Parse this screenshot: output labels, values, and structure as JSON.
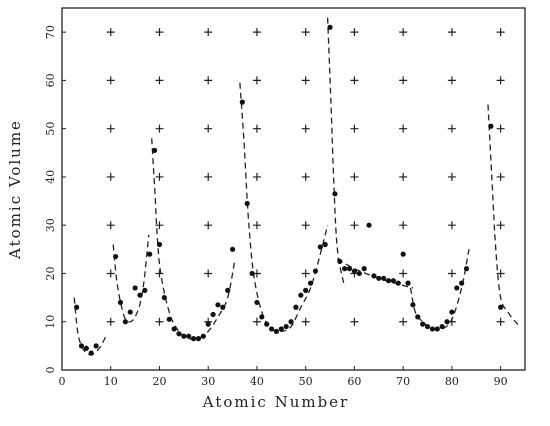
{
  "chart_data": {
    "type": "scatter",
    "title": "",
    "xlabel": "Atomic Number",
    "ylabel": "Atomic Volume",
    "xlim": [
      0,
      95
    ],
    "ylim": [
      0,
      75
    ],
    "xticks": [
      0,
      10,
      20,
      30,
      40,
      50,
      60,
      70,
      80,
      90
    ],
    "yticks": [
      0,
      10,
      20,
      30,
      40,
      50,
      60,
      70
    ],
    "grid": "plus-markers",
    "points": [
      [
        3,
        13
      ],
      [
        4,
        5
      ],
      [
        5,
        4.5
      ],
      [
        6,
        3.5
      ],
      [
        7,
        5
      ],
      [
        11,
        23.5
      ],
      [
        12,
        14
      ],
      [
        13,
        10
      ],
      [
        14,
        12
      ],
      [
        15,
        17
      ],
      [
        16,
        15.5
      ],
      [
        17,
        16.5
      ],
      [
        18,
        24
      ],
      [
        19,
        45.5
      ],
      [
        20,
        26
      ],
      [
        21,
        15
      ],
      [
        22,
        10.5
      ],
      [
        23,
        8.5
      ],
      [
        24,
        7.5
      ],
      [
        25,
        7
      ],
      [
        26,
        7
      ],
      [
        27,
        6.5
      ],
      [
        28,
        6.5
      ],
      [
        29,
        7
      ],
      [
        30,
        9.5
      ],
      [
        31,
        11.5
      ],
      [
        32,
        13.5
      ],
      [
        33,
        13
      ],
      [
        34,
        16.5
      ],
      [
        35,
        25
      ],
      [
        37,
        55.5
      ],
      [
        38,
        34.5
      ],
      [
        39,
        20
      ],
      [
        40,
        14
      ],
      [
        41,
        11
      ],
      [
        42,
        9.5
      ],
      [
        43,
        8.5
      ],
      [
        44,
        8
      ],
      [
        45,
        8.5
      ],
      [
        46,
        9
      ],
      [
        47,
        10
      ],
      [
        48,
        13
      ],
      [
        49,
        15.5
      ],
      [
        50,
        16.5
      ],
      [
        51,
        18
      ],
      [
        52,
        20.5
      ],
      [
        53,
        25.5
      ],
      [
        54,
        26
      ],
      [
        55,
        71
      ],
      [
        56,
        36.5
      ],
      [
        57,
        22.5
      ],
      [
        58,
        21
      ],
      [
        59,
        21
      ],
      [
        60,
        20.5
      ],
      [
        61,
        20
      ],
      [
        62,
        21
      ],
      [
        63,
        30
      ],
      [
        64,
        19.5
      ],
      [
        65,
        19
      ],
      [
        66,
        19
      ],
      [
        67,
        18.5
      ],
      [
        68,
        18.5
      ],
      [
        69,
        18
      ],
      [
        70,
        24
      ],
      [
        71,
        18
      ],
      [
        72,
        13.5
      ],
      [
        73,
        11
      ],
      [
        74,
        9.5
      ],
      [
        75,
        9
      ],
      [
        76,
        8.5
      ],
      [
        77,
        8.5
      ],
      [
        78,
        9
      ],
      [
        79,
        10
      ],
      [
        80,
        12
      ],
      [
        81,
        17
      ],
      [
        82,
        18
      ],
      [
        83,
        21
      ],
      [
        88,
        50.5
      ],
      [
        90,
        13
      ]
    ],
    "curves": [
      [
        [
          2.5,
          15
        ],
        [
          3.2,
          8
        ],
        [
          4,
          5
        ],
        [
          5,
          3.5
        ],
        [
          6,
          3.2
        ],
        [
          7,
          3.8
        ],
        [
          8,
          5
        ],
        [
          9,
          7
        ]
      ],
      [
        [
          10.5,
          26
        ],
        [
          11.3,
          18
        ],
        [
          12.5,
          12
        ],
        [
          13.5,
          10
        ],
        [
          15,
          11
        ],
        [
          16.5,
          16
        ],
        [
          17.8,
          28
        ]
      ],
      [
        [
          18.4,
          48
        ],
        [
          19,
          38
        ],
        [
          20,
          22
        ],
        [
          22,
          12
        ],
        [
          24,
          8
        ],
        [
          26,
          6.5
        ],
        [
          28,
          6.5
        ],
        [
          30,
          8
        ],
        [
          32,
          11
        ],
        [
          34,
          15
        ],
        [
          35.5,
          23
        ]
      ],
      [
        [
          36.5,
          59.5
        ],
        [
          37.3,
          48
        ],
        [
          38.2,
          32
        ],
        [
          39.3,
          20
        ],
        [
          41,
          12
        ],
        [
          43,
          8.5
        ],
        [
          45,
          8
        ],
        [
          47,
          9
        ],
        [
          49,
          13
        ],
        [
          51,
          17
        ],
        [
          53,
          24
        ],
        [
          54.5,
          30
        ]
      ],
      [
        [
          54.5,
          73
        ],
        [
          55.2,
          55
        ],
        [
          55.8,
          38
        ],
        [
          56.5,
          25
        ],
        [
          57.8,
          18
        ]
      ],
      [
        [
          56.5,
          23
        ],
        [
          60,
          21
        ],
        [
          65,
          19
        ],
        [
          70,
          17.5
        ],
        [
          72,
          17
        ]
      ],
      [
        [
          71.5,
          17
        ],
        [
          72.5,
          12
        ],
        [
          74,
          10
        ],
        [
          76,
          8.5
        ],
        [
          78,
          8.5
        ],
        [
          80,
          10.5
        ],
        [
          82,
          17
        ],
        [
          83.5,
          25
        ]
      ],
      [
        [
          87.4,
          55
        ],
        [
          88.3,
          38
        ],
        [
          89,
          25
        ],
        [
          90,
          15
        ],
        [
          91.5,
          12
        ],
        [
          93,
          10
        ],
        [
          94,
          9
        ]
      ]
    ]
  }
}
